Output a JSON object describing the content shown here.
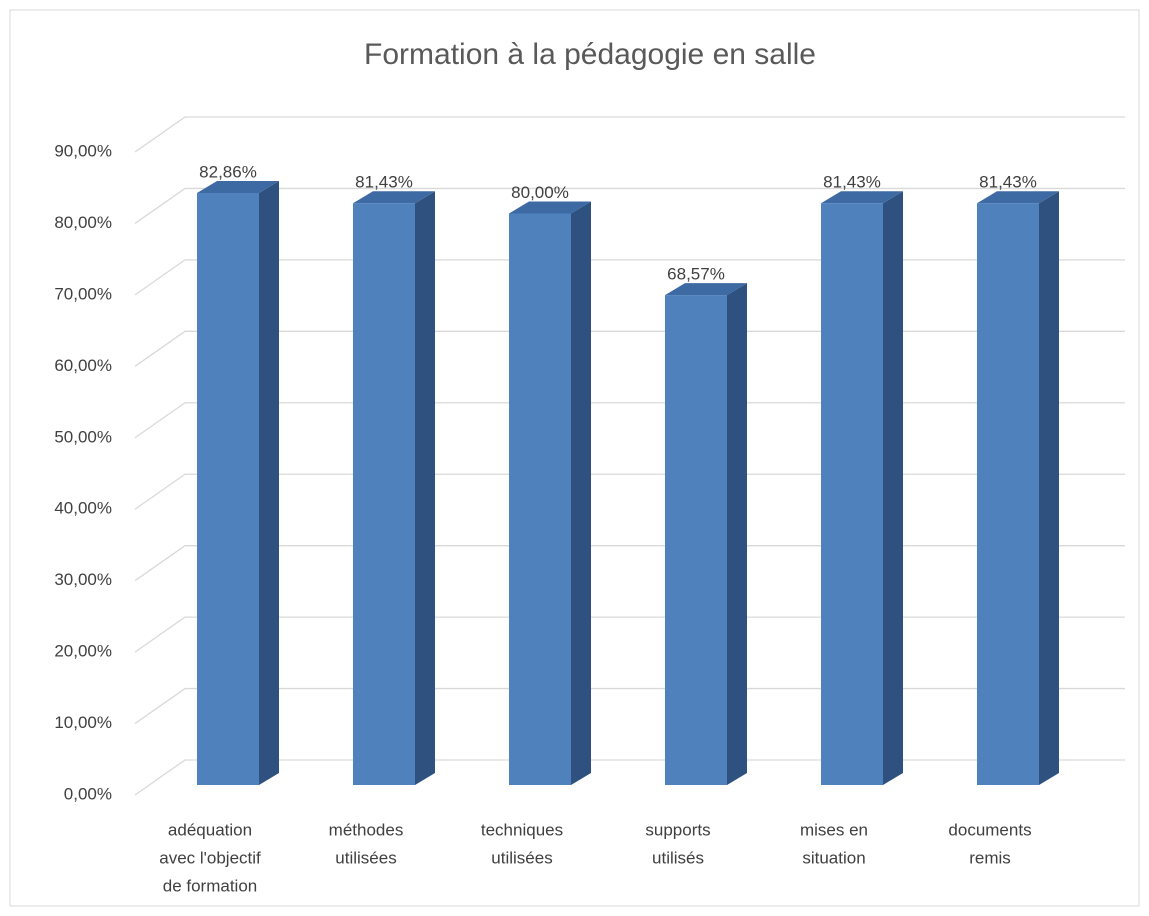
{
  "chart_data": {
    "type": "bar3d",
    "title": "Formation à la pédagogie en salle",
    "categories": [
      [
        "adéquation",
        "avec l'objectif",
        "de formation"
      ],
      [
        "méthodes",
        "utilisées"
      ],
      [
        "techniques",
        "utilisées"
      ],
      [
        "supports",
        "utilisés"
      ],
      [
        "mises en",
        "situation"
      ],
      [
        "documents",
        "remis"
      ]
    ],
    "values": [
      82.86,
      81.43,
      80.0,
      68.57,
      81.43,
      81.43
    ],
    "value_labels": [
      "82,86%",
      "81,43%",
      "80,00%",
      "68,57%",
      "81,43%",
      "81,43%"
    ],
    "color": "#4f81bd",
    "ylim": [
      0,
      90
    ],
    "yticks": [
      {
        "value": 0,
        "label": "0,00%"
      },
      {
        "value": 10,
        "label": "10,00%"
      },
      {
        "value": 20,
        "label": "20,00%"
      },
      {
        "value": 30,
        "label": "30,00%"
      },
      {
        "value": 40,
        "label": "40,00%"
      },
      {
        "value": 50,
        "label": "50,00%"
      },
      {
        "value": 60,
        "label": "60,00%"
      },
      {
        "value": 70,
        "label": "70,00%"
      },
      {
        "value": 80,
        "label": "80,00%"
      },
      {
        "value": 90,
        "label": "90,00%"
      }
    ],
    "grid": true
  }
}
